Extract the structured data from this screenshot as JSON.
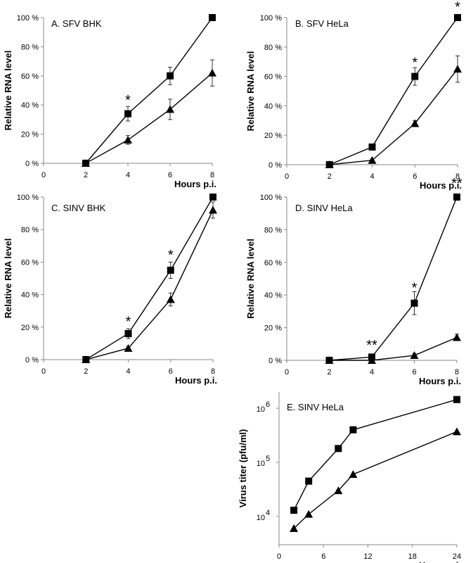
{
  "chart_data": [
    {
      "type": "line",
      "title": "A. SFV BHK",
      "ylabel": "Relative RNA level",
      "xlabel": "Hours p.i.",
      "ytick_labels": [
        "0 %",
        "20 %",
        "40 %",
        "60 %",
        "80 %",
        "100 %"
      ],
      "xtick_labels": [
        "0",
        "2",
        "4",
        "6",
        "8"
      ],
      "xlim": [
        0,
        8
      ],
      "ylim": [
        0,
        100
      ],
      "series": [
        {
          "marker": "square",
          "x": [
            2,
            4,
            6,
            8
          ],
          "y": [
            0,
            34,
            60,
            100
          ],
          "err": [
            0,
            5,
            6,
            0
          ]
        },
        {
          "marker": "triangle",
          "x": [
            2,
            4,
            6,
            8
          ],
          "y": [
            0,
            16,
            37,
            62
          ],
          "err": [
            0,
            3,
            7,
            9
          ]
        }
      ],
      "annotations": [
        {
          "text": "*",
          "x": 4,
          "y": 44
        }
      ]
    },
    {
      "type": "line",
      "title": "B. SFV HeLa",
      "ylabel": "Relative RNA level",
      "xlabel": "Hours p.i.",
      "ytick_labels": [
        "0 %",
        "20 %",
        "40 %",
        "60 %",
        "80 %",
        "100 %"
      ],
      "xtick_labels": [
        "0",
        "2",
        "4",
        "6",
        "8"
      ],
      "xlim": [
        0,
        8
      ],
      "ylim": [
        0,
        100
      ],
      "series": [
        {
          "marker": "square",
          "x": [
            2,
            4,
            6,
            8
          ],
          "y": [
            0,
            12,
            60,
            100
          ],
          "err": [
            0,
            2,
            6,
            0
          ]
        },
        {
          "marker": "triangle",
          "x": [
            2,
            4,
            6,
            8
          ],
          "y": [
            0,
            3,
            28,
            65
          ],
          "err": [
            0,
            1,
            2,
            9
          ]
        }
      ],
      "annotations": [
        {
          "text": "*",
          "x": 6,
          "y": 70
        },
        {
          "text": "*",
          "x": 8,
          "y": 108
        }
      ]
    },
    {
      "type": "line",
      "title": "C. SINV BHK",
      "ylabel": "Relative RNA level",
      "xlabel": "Hours p.i.",
      "ytick_labels": [
        "0 %",
        "20 %",
        "40 %",
        "60 %",
        "80 %",
        "100 %"
      ],
      "xtick_labels": [
        "0",
        "2",
        "4",
        "6",
        "8"
      ],
      "xlim": [
        0,
        8
      ],
      "ylim": [
        0,
        100
      ],
      "series": [
        {
          "marker": "square",
          "x": [
            2,
            4,
            6,
            8
          ],
          "y": [
            0,
            16,
            55,
            100
          ],
          "err": [
            0,
            3,
            5,
            0
          ]
        },
        {
          "marker": "triangle",
          "x": [
            2,
            4,
            6,
            8
          ],
          "y": [
            0,
            7,
            37,
            92
          ],
          "err": [
            0,
            1,
            4,
            5
          ]
        }
      ],
      "annotations": [
        {
          "text": "*",
          "x": 4,
          "y": 24
        },
        {
          "text": "*",
          "x": 6,
          "y": 65
        }
      ]
    },
    {
      "type": "line",
      "title": "D. SINV HeLa",
      "ylabel": "Relative RNA level",
      "xlabel": "Hours p.i.",
      "ytick_labels": [
        "0 %",
        "20 %",
        "40 %",
        "60 %",
        "80 %",
        "100 %"
      ],
      "xtick_labels": [
        "0",
        "2",
        "4",
        "6",
        "8"
      ],
      "xlim": [
        0,
        8
      ],
      "ylim": [
        0,
        100
      ],
      "series": [
        {
          "marker": "square",
          "x": [
            2,
            4,
            6,
            8
          ],
          "y": [
            0,
            2,
            35,
            100
          ],
          "err": [
            0,
            0,
            7,
            0
          ]
        },
        {
          "marker": "triangle",
          "x": [
            2,
            4,
            6,
            8
          ],
          "y": [
            0,
            0,
            3,
            14
          ],
          "err": [
            0,
            0,
            1,
            2
          ]
        }
      ],
      "annotations": [
        {
          "text": "**",
          "x": 4,
          "y": 10
        },
        {
          "text": "*",
          "x": 6,
          "y": 45
        },
        {
          "text": "**",
          "x": 8,
          "y": 109
        }
      ]
    },
    {
      "type": "line",
      "title": "E. SINV HeLa",
      "ylabel": "Virus titer (pfu/ml)",
      "xlabel": "Hours p.i.",
      "yscale": "log",
      "ylim": [
        3000,
        2000000
      ],
      "ytick_values": [
        10000,
        100000,
        1000000
      ],
      "ytick_labels": [
        "10",
        "10",
        "10"
      ],
      "ytick_exponents": [
        "4",
        "5",
        "6"
      ],
      "xtick_labels": [
        "0",
        "6",
        "12",
        "18",
        "24"
      ],
      "xlim": [
        0,
        24
      ],
      "series": [
        {
          "marker": "square",
          "x": [
            2,
            4,
            8,
            10,
            24
          ],
          "y": [
            13000,
            45000,
            180000,
            400000,
            1450000
          ]
        },
        {
          "marker": "triangle",
          "x": [
            2,
            4,
            8,
            10,
            24
          ],
          "y": [
            6000,
            11000,
            30000,
            60000,
            370000
          ]
        }
      ]
    }
  ]
}
